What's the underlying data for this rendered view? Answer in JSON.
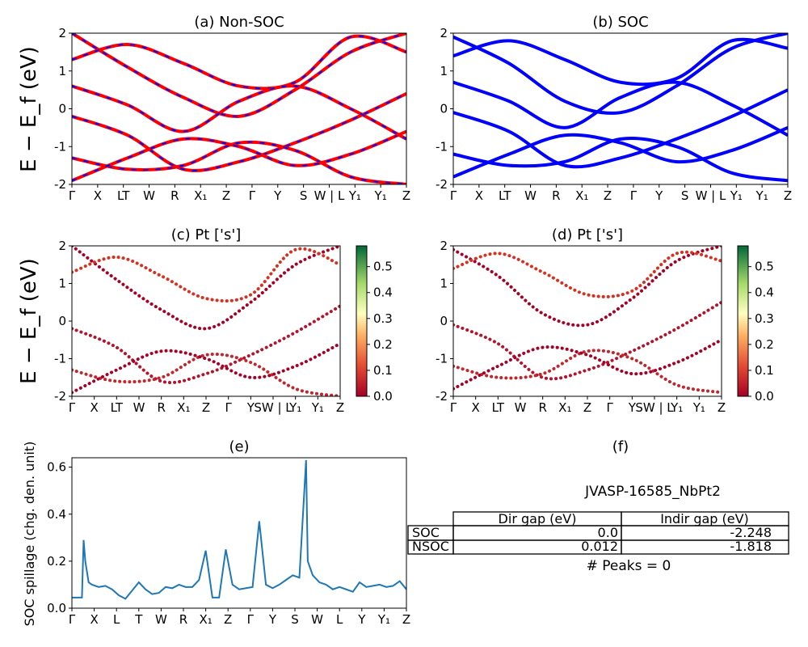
{
  "chart_data": [
    {
      "id": "a",
      "type": "line",
      "title": "(a) Non-SOC",
      "ylabel": "E − E_f (eV)",
      "ylim": [
        -2,
        2
      ],
      "yticks": [
        -2,
        -1,
        0,
        1,
        2
      ],
      "xtick_labels": [
        "Γ",
        "X",
        "LT",
        "W",
        "R",
        "X₁",
        "Z",
        "Γ",
        "Y",
        "S",
        "W | L",
        "Y₁",
        "Y₁",
        "Z"
      ],
      "series": [
        {
          "values": [
            2.0,
            1.1,
            0.3,
            -0.2,
            0.5,
            1.5,
            2.0
          ]
        },
        {
          "values": [
            -0.2,
            -0.7,
            -1.6,
            -1.4,
            -0.9,
            -0.3,
            0.4
          ]
        },
        {
          "values": [
            -1.3,
            -1.6,
            -1.5,
            -0.9,
            -1.1,
            -1.8,
            -2.0
          ]
        },
        {
          "values": [
            -1.9,
            -1.3,
            -0.8,
            -1.0,
            -1.5,
            -1.2,
            -0.6
          ]
        },
        {
          "values": [
            1.3,
            1.7,
            1.2,
            0.6,
            0.7,
            1.9,
            1.5
          ]
        },
        {
          "values": [
            0.6,
            0.1,
            -0.6,
            0.2,
            0.6,
            0.0,
            -0.8
          ]
        }
      ],
      "colors": {
        "line": "#ff0000",
        "dash": "#0000ff"
      }
    },
    {
      "id": "b",
      "type": "line",
      "title": "(b) SOC",
      "ylim": [
        -2,
        2
      ],
      "yticks": [
        -2,
        -1,
        0,
        1,
        2
      ],
      "xtick_labels": [
        "Γ",
        "X",
        "LT",
        "W",
        "R",
        "X₁",
        "Z",
        "Γ",
        "Y",
        "S",
        "W | L",
        "Y₁",
        "Y₁",
        "Z"
      ],
      "series": [
        {
          "values": [
            1.9,
            1.2,
            0.2,
            -0.1,
            0.6,
            1.6,
            2.0
          ]
        },
        {
          "values": [
            -0.1,
            -0.6,
            -1.5,
            -1.3,
            -0.8,
            -0.2,
            0.5
          ]
        },
        {
          "values": [
            -1.2,
            -1.5,
            -1.4,
            -0.8,
            -1.0,
            -1.7,
            -1.9
          ]
        },
        {
          "values": [
            -1.8,
            -1.2,
            -0.7,
            -0.9,
            -1.4,
            -1.1,
            -0.5
          ]
        },
        {
          "values": [
            1.4,
            1.8,
            1.3,
            0.7,
            0.8,
            1.8,
            1.6
          ]
        },
        {
          "values": [
            0.7,
            0.2,
            -0.5,
            0.3,
            0.7,
            0.1,
            -0.7
          ]
        }
      ],
      "colors": {
        "line": "#0000ff"
      }
    },
    {
      "id": "c",
      "type": "scatter",
      "title": "(c)  Pt ['s']",
      "ylabel": "E − E_f (eV)",
      "ylim": [
        -2,
        2
      ],
      "yticks": [
        -2,
        -1,
        0,
        1,
        2
      ],
      "xtick_labels": [
        "Γ",
        "X",
        "LT",
        "W",
        "R",
        "X₁",
        "Z",
        "Γ",
        "Y",
        "SW | L",
        "Y₁",
        "Y₁",
        "Z"
      ],
      "colorbar": {
        "ticks": [
          "0.0",
          "0.1",
          "0.2",
          "0.3",
          "0.4",
          "0.5"
        ],
        "max": 0.58
      },
      "series": [
        {
          "values": [
            2.0,
            1.1,
            0.3,
            -0.2,
            0.5,
            1.5,
            2.0
          ]
        },
        {
          "values": [
            -0.2,
            -0.7,
            -1.6,
            -1.4,
            -0.9,
            -0.3,
            0.4
          ]
        },
        {
          "values": [
            -1.3,
            -1.6,
            -1.5,
            -0.9,
            -1.1,
            -1.8,
            -2.0
          ]
        },
        {
          "values": [
            -1.9,
            -1.3,
            -0.8,
            -1.0,
            -1.5,
            -1.2,
            -0.6
          ]
        },
        {
          "values": [
            1.3,
            1.7,
            1.2,
            0.6,
            0.7,
            1.9,
            1.5
          ]
        }
      ]
    },
    {
      "id": "d",
      "type": "scatter",
      "title": "(d) Pt ['s']",
      "ylim": [
        -2,
        2
      ],
      "yticks": [
        -2,
        -1,
        0,
        1,
        2
      ],
      "xtick_labels": [
        "Γ",
        "X",
        "LT",
        "W",
        "R",
        "X₁",
        "Z",
        "Γ",
        "Y",
        "SW | L",
        "Y₁",
        "Y₁",
        "Z"
      ],
      "colorbar": {
        "ticks": [
          "0.0",
          "0.1",
          "0.2",
          "0.3",
          "0.4",
          "0.5"
        ],
        "max": 0.58
      },
      "series": [
        {
          "values": [
            1.9,
            1.2,
            0.2,
            -0.1,
            0.6,
            1.6,
            2.0
          ]
        },
        {
          "values": [
            -0.1,
            -0.6,
            -1.5,
            -1.3,
            -0.8,
            -0.2,
            0.5
          ]
        },
        {
          "values": [
            -1.2,
            -1.5,
            -1.4,
            -0.8,
            -1.0,
            -1.7,
            -1.9
          ]
        },
        {
          "values": [
            -1.8,
            -1.2,
            -0.7,
            -0.9,
            -1.4,
            -1.1,
            -0.5
          ]
        },
        {
          "values": [
            1.4,
            1.8,
            1.3,
            0.7,
            0.8,
            1.8,
            1.6
          ]
        }
      ]
    },
    {
      "id": "e",
      "type": "line",
      "title": "(e)",
      "ylabel": "SOC spillage (chg. den. unit)",
      "ylim": [
        0.0,
        0.64
      ],
      "yticks": [
        0.0,
        0.2,
        0.4,
        0.6
      ],
      "xtick_labels": [
        "Γ",
        "X",
        "L",
        "T",
        "W",
        "R",
        "X₁",
        "Z",
        "Γ",
        "Y",
        "S",
        "W",
        "L",
        "Y",
        "Y₁",
        "Z"
      ],
      "x": [
        0,
        0.03,
        0.035,
        0.04,
        0.05,
        0.06,
        0.08,
        0.1,
        0.12,
        0.14,
        0.16,
        0.18,
        0.2,
        0.22,
        0.24,
        0.26,
        0.28,
        0.3,
        0.32,
        0.34,
        0.36,
        0.38,
        0.4,
        0.42,
        0.44,
        0.46,
        0.48,
        0.5,
        0.52,
        0.54,
        0.56,
        0.58,
        0.6,
        0.62,
        0.64,
        0.66,
        0.68,
        0.7,
        0.705,
        0.72,
        0.74,
        0.76,
        0.78,
        0.8,
        0.82,
        0.84,
        0.86,
        0.88,
        0.9,
        0.92,
        0.94,
        0.96,
        0.98,
        1.0
      ],
      "y": [
        0.045,
        0.045,
        0.29,
        0.2,
        0.11,
        0.1,
        0.09,
        0.095,
        0.08,
        0.055,
        0.04,
        0.075,
        0.11,
        0.08,
        0.06,
        0.065,
        0.09,
        0.085,
        0.1,
        0.09,
        0.09,
        0.12,
        0.245,
        0.045,
        0.045,
        0.25,
        0.1,
        0.08,
        0.085,
        0.09,
        0.37,
        0.1,
        0.085,
        0.1,
        0.12,
        0.14,
        0.13,
        0.63,
        0.2,
        0.14,
        0.11,
        0.1,
        0.08,
        0.09,
        0.08,
        0.07,
        0.11,
        0.09,
        0.095,
        0.1,
        0.09,
        0.095,
        0.115,
        0.08
      ],
      "colors": {
        "line": "#1f77b4"
      }
    }
  ],
  "panel_f": {
    "title": "(f)",
    "material": "JVASP-16585_NbPt2",
    "table": {
      "headers": [
        "Dir gap (eV)",
        "Indir gap (eV)"
      ],
      "rows": [
        {
          "label": "SOC",
          "dir": "0.0",
          "indir": "-2.248"
        },
        {
          "label": "NSOC",
          "dir": "0.012",
          "indir": "-1.818"
        }
      ]
    },
    "peaks": "# Peaks = 0"
  }
}
